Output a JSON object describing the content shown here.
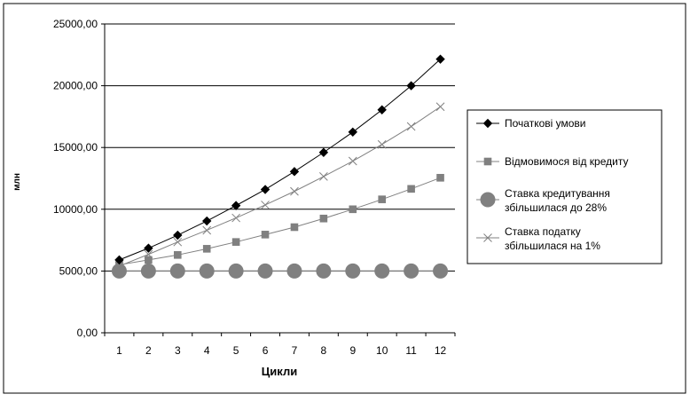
{
  "chart_data": {
    "type": "line",
    "title": "",
    "xlabel": "Цикли",
    "ylabel": "млн",
    "categories": [
      "1",
      "2",
      "3",
      "4",
      "5",
      "6",
      "7",
      "8",
      "9",
      "10",
      "11",
      "12"
    ],
    "ylim": [
      0,
      25000
    ],
    "yticks": [
      "0,00",
      "5000,00",
      "10000,00",
      "15000,00",
      "20000,00",
      "25000,00"
    ],
    "ytick_values": [
      0,
      5000,
      10000,
      15000,
      20000,
      25000
    ],
    "grid": "horizontal",
    "legend_position": "right",
    "series": [
      {
        "name": "Початкові умови",
        "marker": "diamond",
        "color": "#000000",
        "values": [
          5900,
          6850,
          7900,
          9050,
          10300,
          11600,
          13050,
          14600,
          16250,
          18050,
          20000,
          22150
        ]
      },
      {
        "name": "Відмовимося від кредиту",
        "marker": "square",
        "color": "#808080",
        "values": [
          5500,
          5900,
          6300,
          6800,
          7350,
          7950,
          8550,
          9250,
          10000,
          10800,
          11650,
          12550
        ]
      },
      {
        "name": "Ставка кредитування збільшилася до 28%",
        "marker": "circle",
        "color": "#808080",
        "values": [
          5000,
          5000,
          5000,
          5000,
          5000,
          5000,
          5000,
          5000,
          5000,
          5000,
          5000,
          5000
        ]
      },
      {
        "name": "Ставка податку збільшилася на 1%",
        "marker": "x",
        "color": "#808080",
        "values": [
          5400,
          6350,
          7350,
          8300,
          9300,
          10350,
          11450,
          12650,
          13900,
          15250,
          16700,
          18300
        ]
      }
    ]
  },
  "legend": {
    "items": [
      {
        "line1": "Початкові умови",
        "line2": ""
      },
      {
        "line1": "Відмовимося від кредиту",
        "line2": ""
      },
      {
        "line1": "Ставка кредитування",
        "line2": "збільшилася до 28%"
      },
      {
        "line1": "Ставка податку",
        "line2": "збільшилася на 1%"
      }
    ]
  }
}
